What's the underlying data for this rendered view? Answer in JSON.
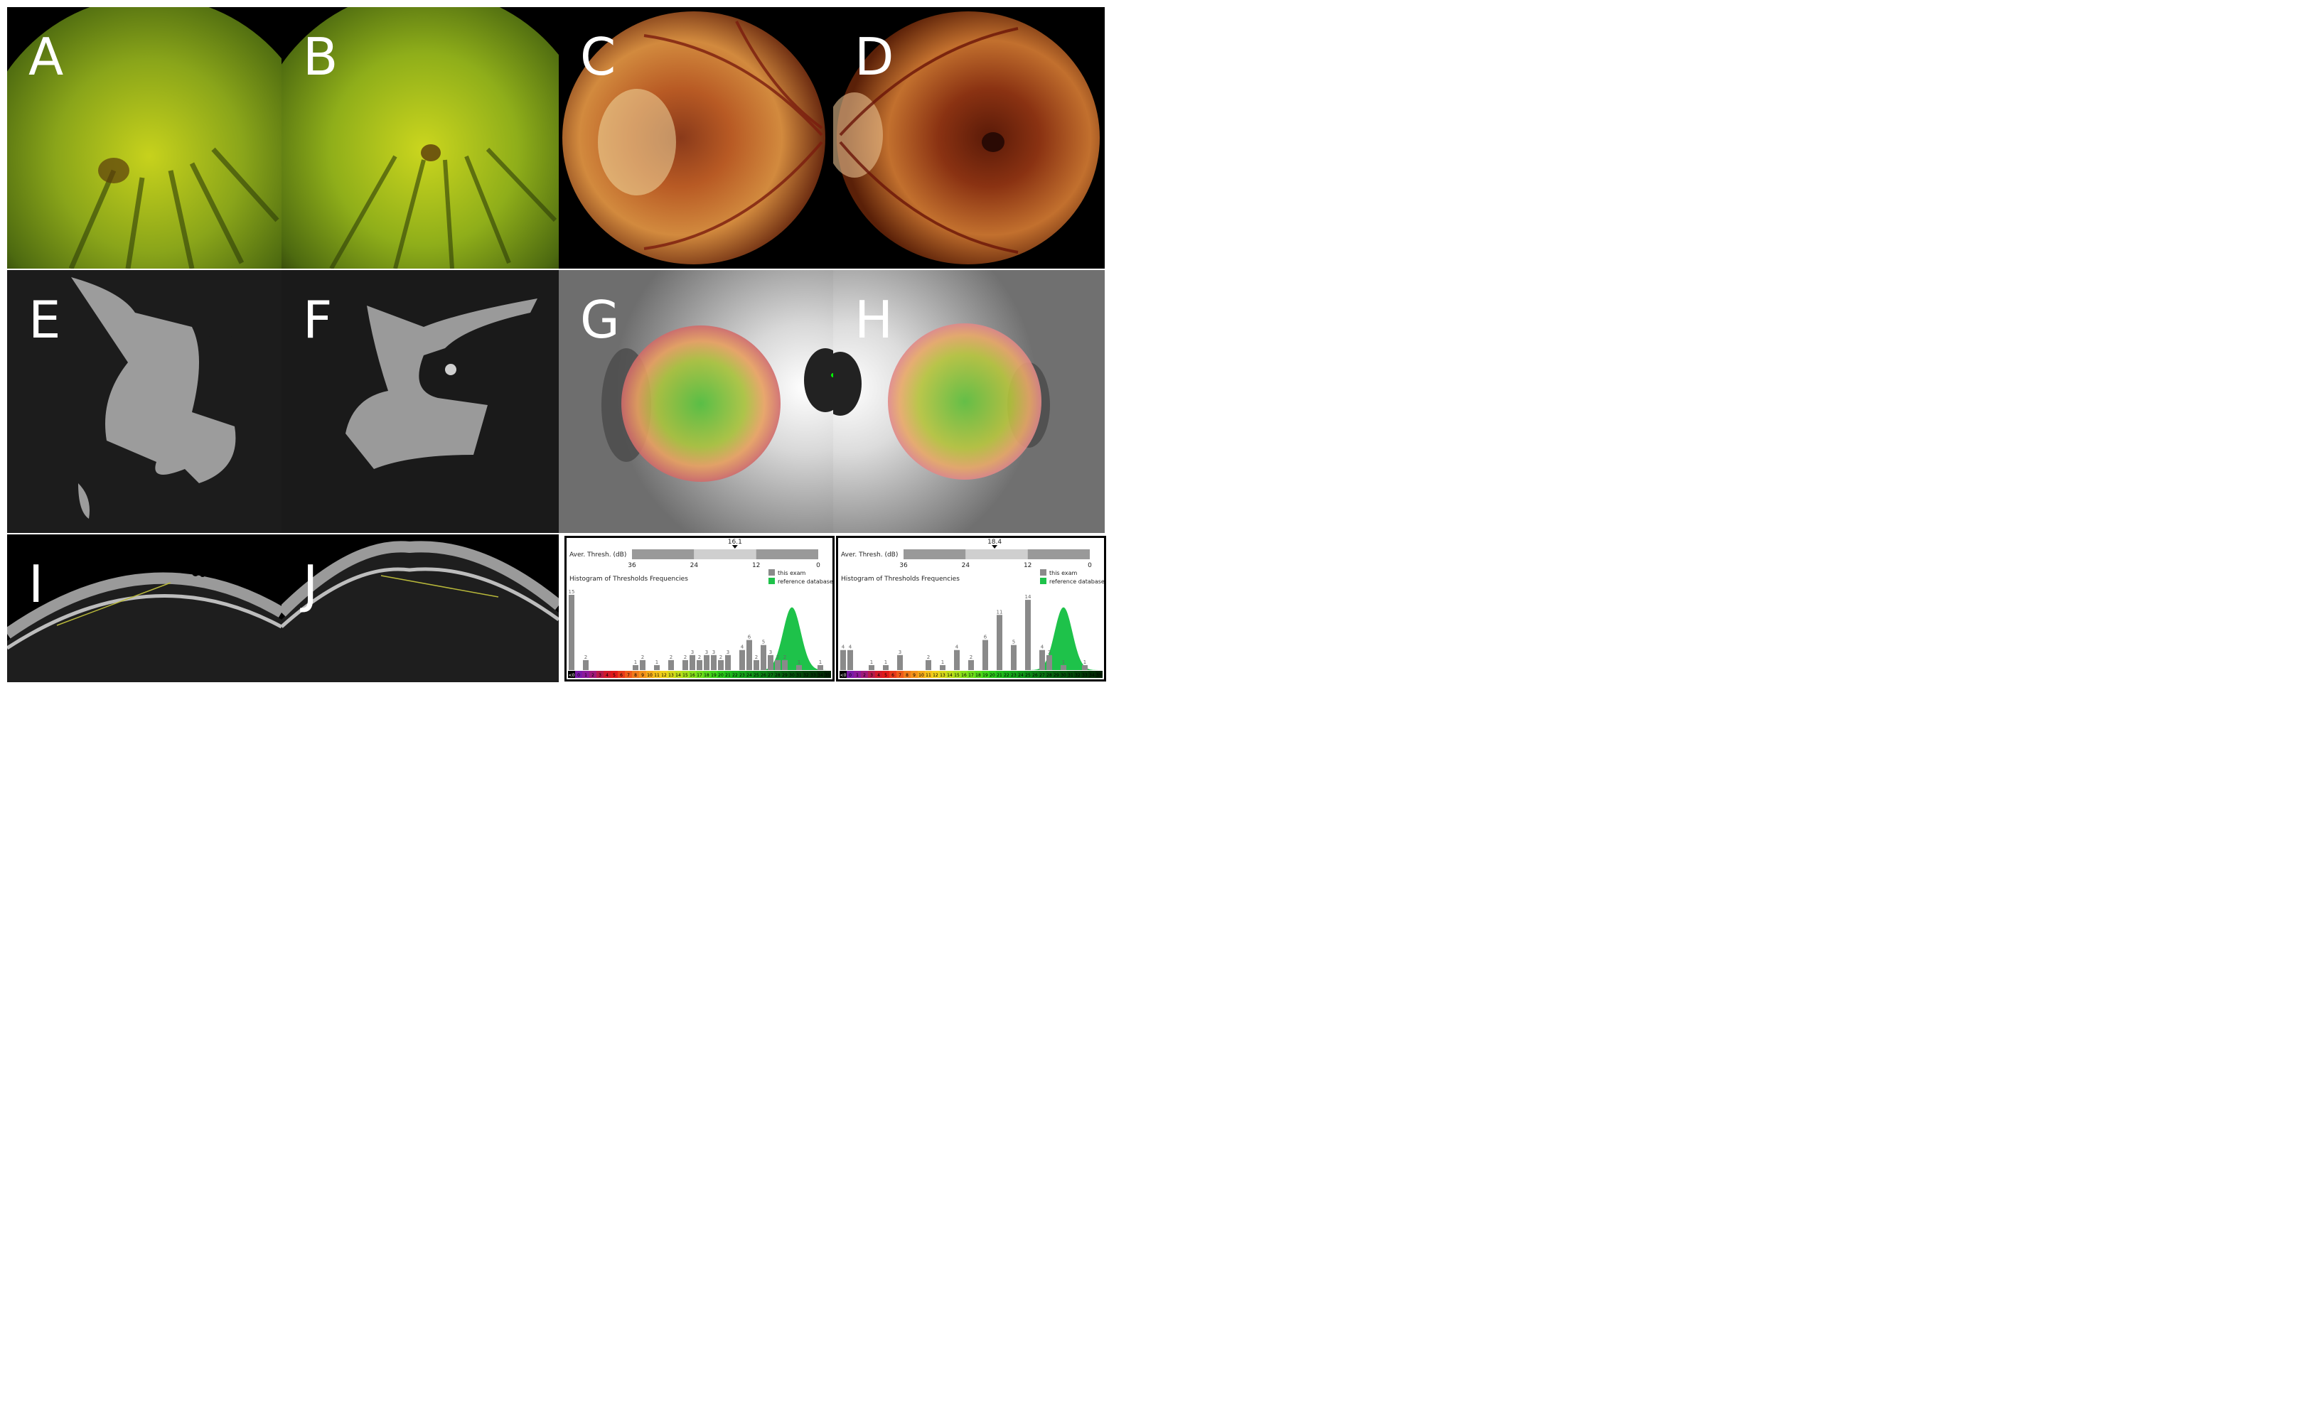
{
  "panels": [
    {
      "letter": "A",
      "type": "widefield-fundus"
    },
    {
      "letter": "B",
      "type": "widefield-fundus"
    },
    {
      "letter": "C",
      "type": "color-fundus"
    },
    {
      "letter": "D",
      "type": "color-fundus"
    },
    {
      "letter": "E",
      "type": "fundus-autofluorescence"
    },
    {
      "letter": "F",
      "type": "fundus-autofluorescence"
    },
    {
      "letter": "G",
      "type": "microperimetry-map"
    },
    {
      "letter": "H",
      "type": "microperimetry-map"
    },
    {
      "letter": "I",
      "type": "oct-bscan"
    },
    {
      "letter": "J",
      "type": "oct-bscan"
    }
  ],
  "colors": {
    "this_exam": "#8a8a8a",
    "reference": "#1ec24a",
    "bar_dark": "#999999",
    "bar_light": "#cfcfcf"
  },
  "chart_data": [
    {
      "type": "bar",
      "avg_label": "Aver. Thresh. (dB)",
      "avg_value": 16.1,
      "avg_ticks": [
        "36",
        "24",
        "12",
        "0"
      ],
      "title": "Histogram of Thresholds Frequencies",
      "legend": [
        "this exam",
        "reference database"
      ],
      "legend_position": "top-right",
      "categories": [
        "<0",
        "0",
        "1",
        "2",
        "3",
        "4",
        "5",
        "6",
        "7",
        "8",
        "9",
        "10",
        "11",
        "12",
        "13",
        "14",
        "15",
        "16",
        "17",
        "18",
        "19",
        "20",
        "21",
        "22",
        "23",
        "24",
        "25",
        "26",
        "27",
        "28",
        "29",
        "30",
        "31",
        "32",
        "33",
        "34",
        "35"
      ],
      "values": [
        15,
        0,
        2,
        0,
        0,
        0,
        0,
        0,
        0,
        1,
        2,
        0,
        1,
        0,
        2,
        0,
        2,
        3,
        2,
        3,
        3,
        2,
        3,
        0,
        4,
        6,
        2,
        5,
        3,
        2,
        2,
        0,
        1,
        0,
        0,
        1,
        0
      ]
    },
    {
      "type": "bar",
      "avg_label": "Aver. Thresh. (dB)",
      "avg_value": 18.4,
      "avg_ticks": [
        "36",
        "24",
        "12",
        "0"
      ],
      "title": "Histogram of Thresholds Frequencies",
      "legend": [
        "this exam",
        "reference database"
      ],
      "legend_position": "top-right",
      "categories": [
        "<0",
        "0",
        "1",
        "2",
        "3",
        "4",
        "5",
        "6",
        "7",
        "8",
        "9",
        "10",
        "11",
        "12",
        "13",
        "14",
        "15",
        "16",
        "17",
        "18",
        "19",
        "20",
        "21",
        "22",
        "23",
        "24",
        "25",
        "26",
        "27",
        "28",
        "29",
        "30",
        "31",
        "32",
        "33",
        "34",
        "35"
      ],
      "values": [
        4,
        4,
        0,
        0,
        1,
        0,
        1,
        0,
        3,
        0,
        0,
        0,
        2,
        0,
        1,
        0,
        4,
        0,
        2,
        0,
        6,
        0,
        11,
        0,
        5,
        0,
        14,
        0,
        4,
        3,
        0,
        1,
        0,
        0,
        1,
        0,
        0
      ]
    }
  ]
}
